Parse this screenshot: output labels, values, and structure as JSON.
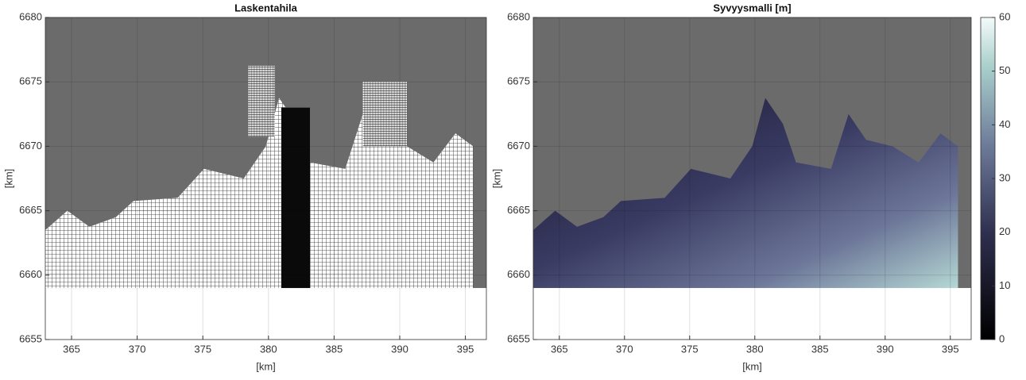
{
  "chart_data": [
    {
      "type": "mesh-map",
      "title": "Laskentahila",
      "x_label": "[km]",
      "y_label": "[km]",
      "xlim": [
        363,
        396.6
      ],
      "ylim": [
        6655,
        6680
      ],
      "xticks": [
        365,
        370,
        375,
        380,
        385,
        390,
        395
      ],
      "yticks": [
        6655,
        6660,
        6665,
        6670,
        6675,
        6680
      ],
      "grid": true
    },
    {
      "type": "depth-map",
      "title": "Syvyysmalli [m]",
      "x_label": "[km]",
      "y_label": "[km]",
      "xlim": [
        363,
        396.6
      ],
      "ylim": [
        6655,
        6680
      ],
      "xticks": [
        365,
        370,
        375,
        380,
        385,
        390,
        395
      ],
      "yticks": [
        6655,
        6660,
        6665,
        6670,
        6675,
        6680
      ],
      "grid": true,
      "clim": [
        0,
        60
      ],
      "cticks": [
        0,
        10,
        20,
        30,
        40,
        50,
        60
      ]
    }
  ]
}
